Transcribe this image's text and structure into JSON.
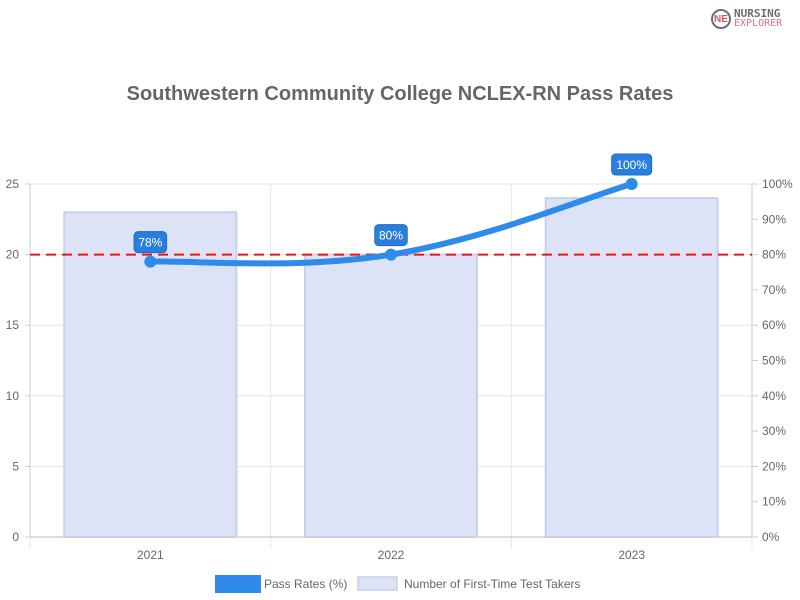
{
  "logo": {
    "mark": "NE",
    "line1": "NURSING",
    "line2": "EXPLORER"
  },
  "chart_data": {
    "type": "bar",
    "title": "Southwestern Community College NCLEX-RN Pass Rates",
    "categories": [
      "2021",
      "2022",
      "2023"
    ],
    "series": [
      {
        "name": "Pass Rates (%)",
        "type": "line",
        "axis": "right",
        "values": [
          78,
          80,
          100
        ],
        "labels": [
          "78%",
          "80%",
          "100%"
        ],
        "color": "#2e8bea"
      },
      {
        "name": "Number of First-Time Test Takers",
        "type": "bar",
        "axis": "left",
        "values": [
          23,
          20,
          24
        ],
        "color": "#dde3f6",
        "border": "#c9d0e8"
      }
    ],
    "reference_line": {
      "value": 80,
      "axis": "right",
      "color": "#e8141c",
      "style": "dashed"
    },
    "y_left": {
      "ticks": [
        "0",
        "5",
        "10",
        "15",
        "20",
        "25"
      ],
      "range": [
        0,
        25
      ]
    },
    "y_right": {
      "ticks": [
        "0%",
        "10%",
        "20%",
        "30%",
        "40%",
        "50%",
        "60%",
        "70%",
        "80%",
        "90%",
        "100%"
      ],
      "range": [
        0,
        100
      ]
    },
    "grid": true,
    "legend_position": "bottom"
  }
}
